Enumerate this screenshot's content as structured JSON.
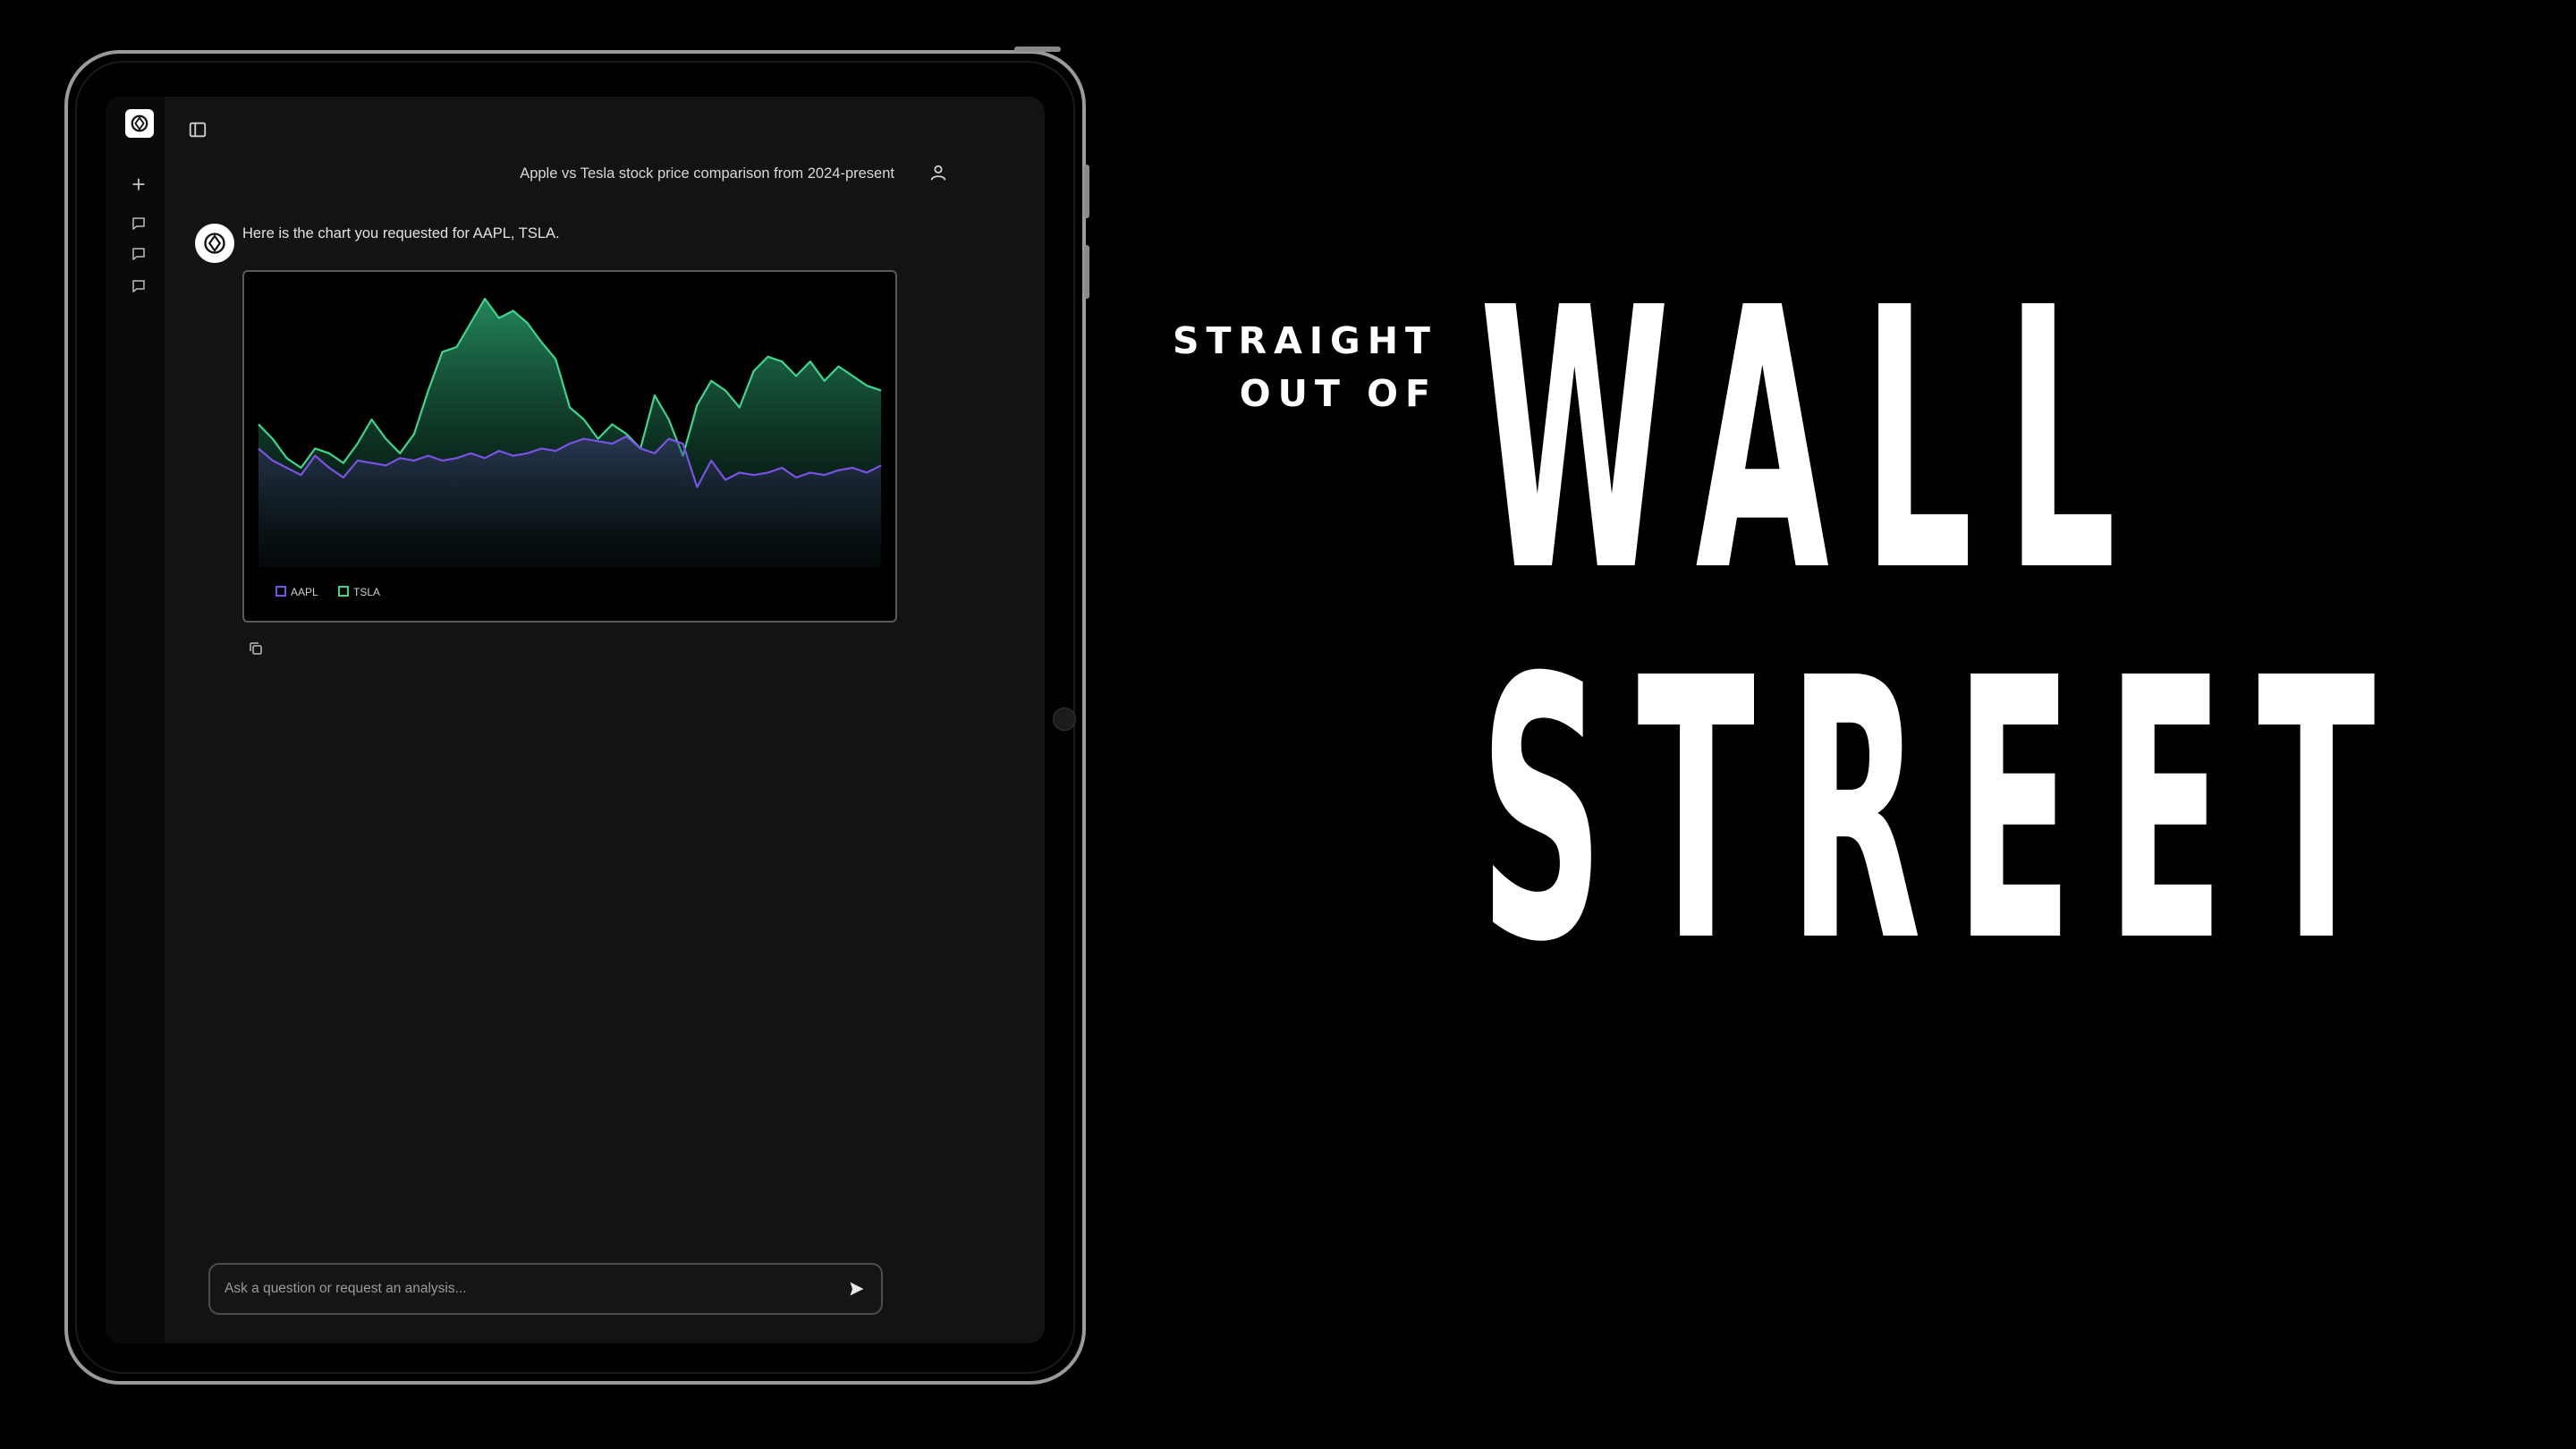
{
  "app": {
    "user_message": "Apple vs Tesla stock price comparison from 2024-present",
    "assistant_message": "Here is the chart you requested for AAPL, TSLA.",
    "input_placeholder": "Ask a question or request an analysis...",
    "sidebar": {
      "items": [
        {
          "icon": "plus-icon"
        },
        {
          "icon": "chat-icon"
        },
        {
          "icon": "chat-icon"
        },
        {
          "icon": "chat-icon"
        }
      ]
    }
  },
  "headline": {
    "kicker_line1": "STRAIGHT",
    "kicker_line2": "OUT OF",
    "line1": "WALL",
    "line2": "STREET"
  },
  "chart_data": {
    "type": "area",
    "title": "",
    "legend": [
      "AAPL",
      "TSLA"
    ],
    "legend_position": "bottom-left",
    "colors": {
      "AAPL": "#7b52e8",
      "TSLA": "#3dd68c"
    },
    "series": [
      {
        "name": "AAPL",
        "values": [
          0.38,
          0.33,
          0.3,
          0.27,
          0.35,
          0.3,
          0.26,
          0.33,
          0.32,
          0.31,
          0.34,
          0.33,
          0.35,
          0.33,
          0.34,
          0.36,
          0.34,
          0.37,
          0.35,
          0.36,
          0.38,
          0.37,
          0.4,
          0.42,
          0.41,
          0.4,
          0.43,
          0.38,
          0.36,
          0.42,
          0.4,
          0.22,
          0.33,
          0.25,
          0.28,
          0.27,
          0.28,
          0.3,
          0.26,
          0.28,
          0.27,
          0.29,
          0.3,
          0.28,
          0.31
        ]
      },
      {
        "name": "TSLA",
        "values": [
          0.48,
          0.42,
          0.34,
          0.3,
          0.38,
          0.36,
          0.32,
          0.4,
          0.5,
          0.42,
          0.36,
          0.44,
          0.62,
          0.78,
          0.8,
          0.9,
          1.0,
          0.92,
          0.95,
          0.9,
          0.82,
          0.75,
          0.55,
          0.5,
          0.42,
          0.48,
          0.44,
          0.38,
          0.6,
          0.5,
          0.35,
          0.56,
          0.66,
          0.62,
          0.55,
          0.7,
          0.76,
          0.74,
          0.68,
          0.74,
          0.66,
          0.72,
          0.68,
          0.64,
          0.62
        ]
      }
    ]
  }
}
